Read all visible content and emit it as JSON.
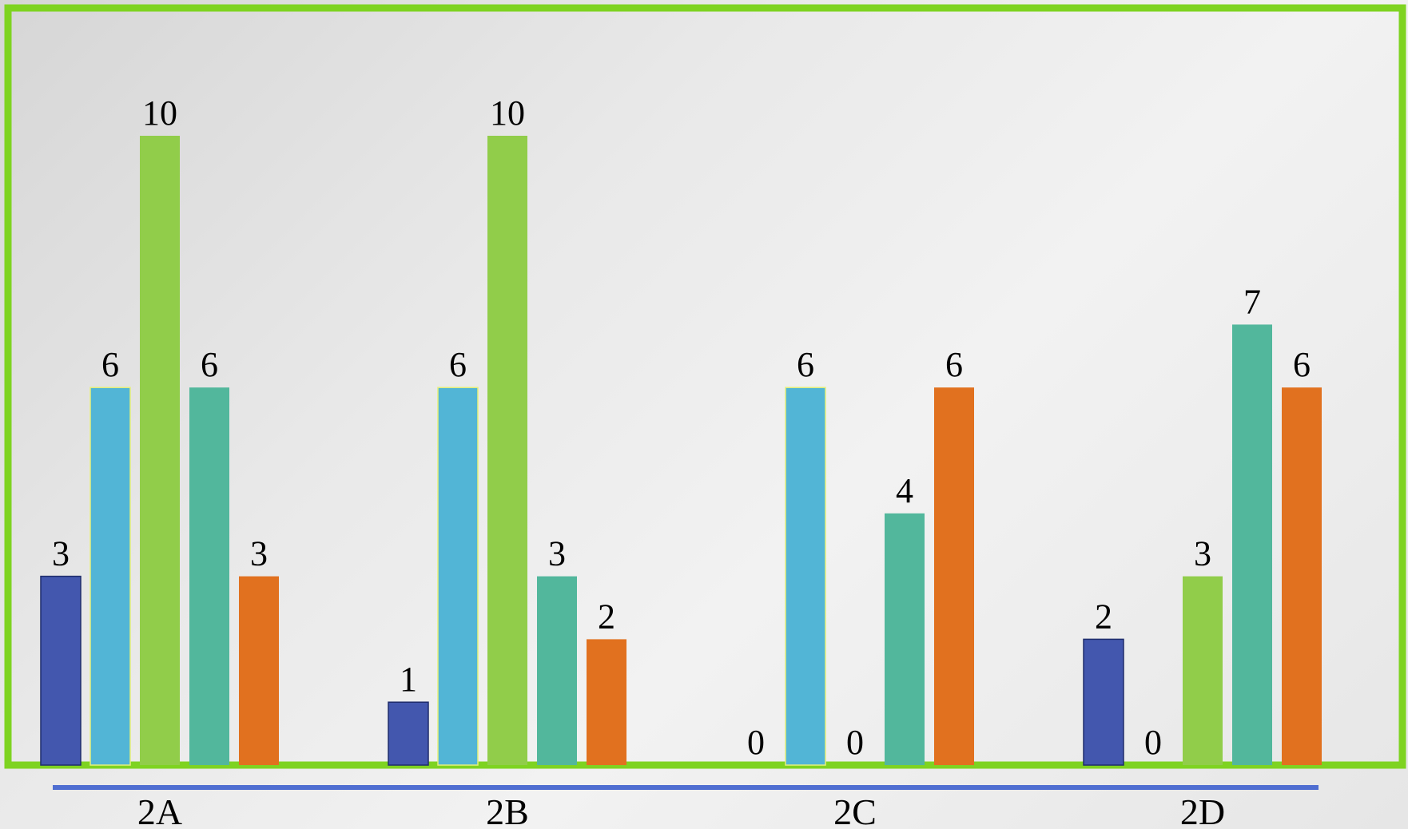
{
  "chart_data": {
    "type": "bar",
    "categories": [
      "2A",
      "2B",
      "2C",
      "2D"
    ],
    "series": [
      {
        "values": [
          3,
          1,
          0,
          2
        ],
        "color": "#4357AE"
      },
      {
        "values": [
          6,
          6,
          6,
          0
        ],
        "color": "#52B5D6"
      },
      {
        "values": [
          10,
          10,
          0,
          3
        ],
        "color": "#91CD4A"
      },
      {
        "values": [
          6,
          3,
          4,
          7
        ],
        "color": "#52B79C"
      },
      {
        "values": [
          3,
          2,
          6,
          6
        ],
        "color": "#E1711F"
      }
    ],
    "ylim": [
      0,
      10
    ],
    "data_labels": true,
    "grid": false,
    "legend": "none",
    "frame_color": "#7ED321",
    "axis_line_color": "#4F6ED1"
  }
}
